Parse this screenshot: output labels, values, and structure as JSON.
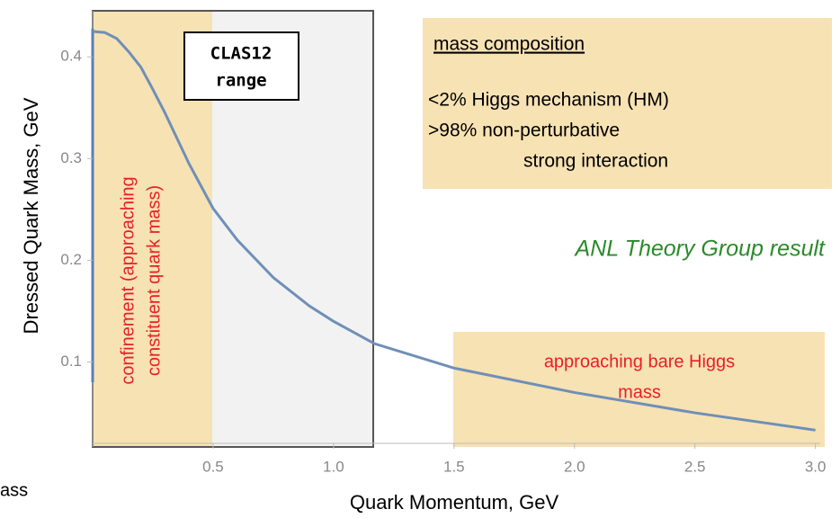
{
  "chart_data": {
    "type": "line",
    "xlabel": "Quark Momentum, GeV",
    "ylabel": "Dressed Quark Mass, GeV",
    "x": [
      0,
      0.05,
      0.1,
      0.15,
      0.2,
      0.25,
      0.3,
      0.4,
      0.5,
      0.6,
      0.75,
      0.9,
      1.0,
      1.17,
      1.5,
      2.0,
      2.5,
      3.0
    ],
    "series": [
      {
        "name": "Dressed quark mass",
        "color": "#6f8fb8",
        "values": [
          0.425,
          0.424,
          0.418,
          0.405,
          0.39,
          0.368,
          0.345,
          0.295,
          0.251,
          0.22,
          0.183,
          0.155,
          0.14,
          0.118,
          0.094,
          0.07,
          0.05,
          0.033
        ]
      }
    ],
    "xlim": [
      0,
      3.02
    ],
    "ylim": [
      0.02,
      0.44
    ],
    "xticks": [
      0.5,
      {
        "value": 1,
        "label": "1.0"
      },
      1.5,
      {
        "value": 2,
        "label": "2.0"
      },
      2.5,
      {
        "value": 3,
        "label": "3.0"
      }
    ],
    "yticks": [
      0.1,
      0.2,
      0.3,
      0.4
    ],
    "annotations": {
      "clas12": [
        "CLAS12",
        "range"
      ],
      "confinement": [
        "confinement (approaching",
        "constituent quark mass)"
      ],
      "composition_title": "mass composition",
      "composition_lines": [
        "<2%   Higgs mechanism (HM)",
        ">98% non-perturbative",
        "strong interaction"
      ],
      "theory": "ANL Theory Group result",
      "bare": [
        "approaching bare Higgs",
        "mass"
      ],
      "fragment": "ass"
    }
  }
}
